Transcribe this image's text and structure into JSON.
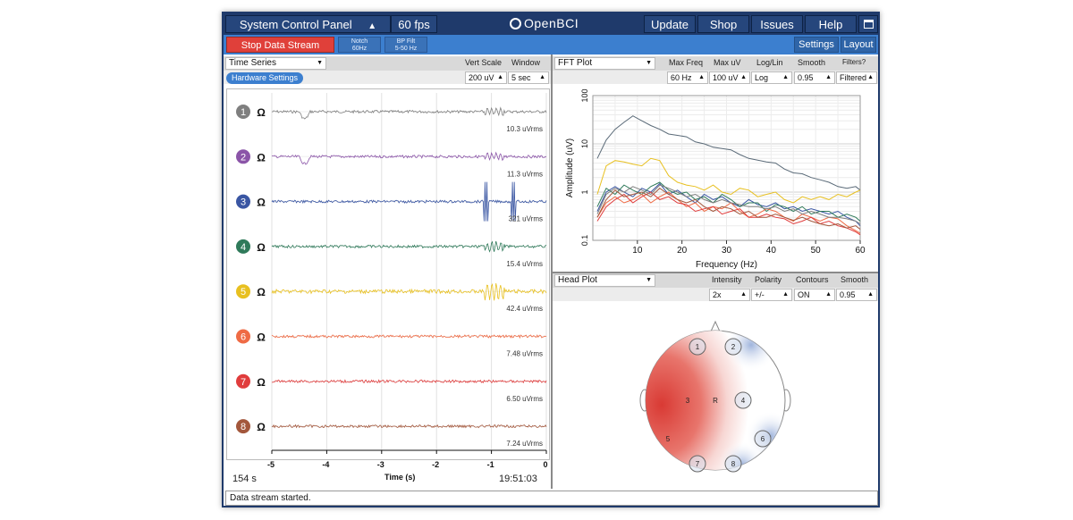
{
  "topbar": {
    "system_control_panel": "System Control Panel",
    "caret_icon": "▲",
    "fps": "60 fps",
    "logo_text": "OpenBCI",
    "update": "Update",
    "shop": "Shop",
    "issues": "Issues",
    "help": "Help"
  },
  "toolbar": {
    "stop_stream": "Stop Data Stream",
    "notch_line1": "Notch",
    "notch_line2": "60Hz",
    "bp_line1": "BP Filt",
    "bp_line2": "5-50 Hz",
    "settings": "Settings",
    "layout": "Layout"
  },
  "time_series": {
    "widget": "Time Series",
    "vert_scale_label": "Vert Scale",
    "window_label": "Window",
    "vert_scale_value": "200 uV",
    "window_value": "5 sec",
    "hardware_settings": "Hardware Settings",
    "ohm": "Ω",
    "channels": [
      {
        "num": "1",
        "color": "#7f7f7f",
        "rms": "10.3 uVrms"
      },
      {
        "num": "2",
        "color": "#8b55a8",
        "rms": "11.3 uVrms"
      },
      {
        "num": "3",
        "color": "#3a56a3",
        "rms": "321 uVrms"
      },
      {
        "num": "4",
        "color": "#2f7a5a",
        "rms": "15.4 uVrms"
      },
      {
        "num": "5",
        "color": "#e8c020",
        "rms": "42.4 uVrms"
      },
      {
        "num": "6",
        "color": "#ef6b45",
        "rms": "7.48 uVrms"
      },
      {
        "num": "7",
        "color": "#e03c3c",
        "rms": "6.50 uVrms"
      },
      {
        "num": "8",
        "color": "#a3573c",
        "rms": "7.24 uVrms"
      }
    ],
    "x_ticks": [
      "-5",
      "-4",
      "-3",
      "-2",
      "-1",
      "0"
    ],
    "x_label": "Time (s)",
    "elapsed": "154 s",
    "clock": "19:51:03"
  },
  "fft": {
    "widget": "FFT Plot",
    "max_freq_label": "Max Freq",
    "max_uv_label": "Max uV",
    "loglin_label": "Log/Lin",
    "smooth_label": "Smooth",
    "filters_label": "Filters?",
    "max_freq_value": "60 Hz",
    "max_uv_value": "100 uV",
    "loglin_value": "Log",
    "smooth_value": "0.95",
    "filters_value": "Filtered"
  },
  "head_plot": {
    "widget": "Head Plot",
    "intensity_label": "Intensity",
    "polarity_label": "Polarity",
    "contours_label": "Contours",
    "smooth_label": "Smooth",
    "intensity_value": "2x",
    "polarity_value": "+/-",
    "contours_value": "ON",
    "smooth_value": "0.95",
    "electrodes": [
      "1",
      "2",
      "3",
      "4",
      "5",
      "6",
      "7",
      "8"
    ],
    "ref_label": "R"
  },
  "chart_data": {
    "type": "line",
    "title": "",
    "xlabel": "Frequency (Hz)",
    "ylabel": "Amplitude (uV)",
    "xlim": [
      0,
      60
    ],
    "ylim": [
      0.1,
      100
    ],
    "y_scale": "log",
    "x_ticks": [
      "10",
      "20",
      "30",
      "40",
      "50",
      "60"
    ],
    "y_ticks": [
      "0.1",
      "1",
      "10",
      "100"
    ],
    "grid": true,
    "x": [
      1,
      3,
      5,
      7,
      9,
      11,
      13,
      15,
      17,
      19,
      21,
      23,
      25,
      27,
      29,
      31,
      33,
      35,
      37,
      39,
      41,
      43,
      45,
      47,
      49,
      51,
      53,
      55,
      57,
      59,
      60
    ],
    "series": [
      {
        "color": "#5a6a78",
        "values": [
          5,
          12,
          20,
          28,
          38,
          30,
          24,
          20,
          16,
          15,
          14,
          11,
          10,
          8.5,
          8,
          7.5,
          6,
          5,
          4.6,
          4.2,
          4,
          3,
          2.5,
          2.4,
          2,
          1.8,
          1.6,
          1.3,
          1.2,
          1.3,
          1.1
        ]
      },
      {
        "color": "#e8c020",
        "values": [
          0.9,
          3.5,
          4.5,
          4.2,
          3.8,
          3.5,
          5,
          4.5,
          2.2,
          1.6,
          1.4,
          1.3,
          1.1,
          1.4,
          1.0,
          0.9,
          1.2,
          1.1,
          0.8,
          0.9,
          1.0,
          0.7,
          0.6,
          0.8,
          0.7,
          0.8,
          0.7,
          0.9,
          0.8,
          1.0,
          1.1
        ]
      },
      {
        "color": "#3a56a3",
        "values": [
          0.4,
          1.0,
          1.3,
          1.0,
          0.8,
          1.2,
          1.0,
          1.5,
          0.9,
          1.1,
          0.8,
          0.6,
          0.9,
          0.7,
          0.8,
          0.6,
          0.5,
          0.7,
          0.55,
          0.5,
          0.6,
          0.45,
          0.5,
          0.4,
          0.45,
          0.4,
          0.35,
          0.4,
          0.3,
          0.25,
          0.2
        ]
      },
      {
        "color": "#2f7a5a",
        "values": [
          0.5,
          1.2,
          0.9,
          1.4,
          1.1,
          0.9,
          1.3,
          1.6,
          1.1,
          0.9,
          1.0,
          0.7,
          0.8,
          0.6,
          0.9,
          0.7,
          0.5,
          0.6,
          0.6,
          0.4,
          0.55,
          0.5,
          0.4,
          0.5,
          0.35,
          0.4,
          0.4,
          0.3,
          0.35,
          0.3,
          0.25
        ]
      },
      {
        "color": "#ef6b45",
        "values": [
          0.3,
          0.6,
          0.8,
          0.6,
          0.7,
          0.9,
          0.6,
          0.8,
          1.0,
          0.7,
          0.5,
          0.6,
          0.4,
          0.5,
          0.45,
          0.6,
          0.4,
          0.3,
          0.35,
          0.45,
          0.4,
          0.3,
          0.25,
          0.35,
          0.3,
          0.25,
          0.3,
          0.28,
          0.2,
          0.16,
          0.14
        ]
      },
      {
        "color": "#e03c3c",
        "values": [
          0.25,
          0.5,
          0.7,
          0.9,
          0.6,
          0.8,
          1.0,
          0.7,
          0.8,
          0.6,
          0.55,
          0.4,
          0.45,
          0.5,
          0.35,
          0.4,
          0.45,
          0.3,
          0.3,
          0.35,
          0.3,
          0.28,
          0.22,
          0.25,
          0.3,
          0.22,
          0.25,
          0.2,
          0.18,
          0.15,
          0.13
        ]
      },
      {
        "color": "#a3573c",
        "values": [
          0.3,
          0.7,
          1.1,
          0.8,
          0.9,
          1.0,
          0.8,
          1.2,
          0.9,
          0.7,
          0.6,
          0.7,
          0.5,
          0.4,
          0.5,
          0.45,
          0.35,
          0.4,
          0.3,
          0.3,
          0.35,
          0.3,
          0.26,
          0.3,
          0.25,
          0.22,
          0.2,
          0.22,
          0.18,
          0.2,
          0.17
        ]
      },
      {
        "color": "#7f7f7f",
        "values": [
          0.35,
          0.9,
          1.2,
          1.0,
          1.3,
          1.1,
          0.9,
          1.4,
          1.2,
          1.0,
          0.8,
          0.9,
          0.7,
          0.6,
          0.7,
          0.6,
          0.55,
          0.5,
          0.5,
          0.45,
          0.5,
          0.4,
          0.45,
          0.35,
          0.4,
          0.35,
          0.3,
          0.3,
          0.28,
          0.25,
          0.22
        ]
      }
    ]
  },
  "status": {
    "message": "Data stream started."
  }
}
